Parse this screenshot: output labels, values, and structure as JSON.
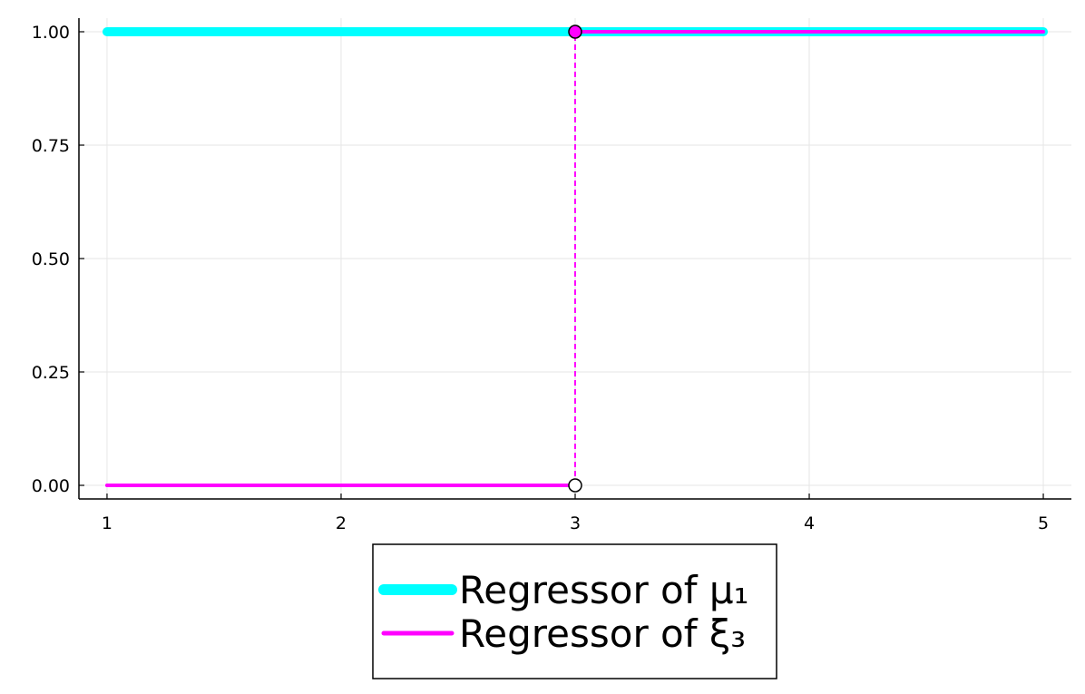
{
  "chart_data": {
    "type": "line",
    "title": "",
    "xlabel": "",
    "ylabel": "",
    "xlim": [
      0.88,
      5.12
    ],
    "ylim": [
      -0.03,
      1.03
    ],
    "x_ticks": [
      1,
      2,
      3,
      4,
      5
    ],
    "x_tick_labels": [
      "1",
      "2",
      "3",
      "4",
      "5"
    ],
    "y_ticks": [
      0.0,
      0.25,
      0.5,
      0.75,
      1.0
    ],
    "y_tick_labels": [
      "0.00",
      "0.25",
      "0.50",
      "0.75",
      "1.00"
    ],
    "grid": true,
    "legend_position": "bottom-outside",
    "series": [
      {
        "name": "Regressor of μ₁",
        "color": "#00FFFF",
        "style": "thick-solid",
        "segments": [
          {
            "x": [
              1,
              3
            ],
            "y": [
              1,
              1
            ]
          },
          {
            "x": [
              3,
              5
            ],
            "y": [
              1,
              1
            ]
          }
        ]
      },
      {
        "name": "Regressor of ξ₃",
        "color": "#FF00FF",
        "style": "solid",
        "segments": [
          {
            "x": [
              1,
              3
            ],
            "y": [
              0,
              0
            ]
          },
          {
            "x": [
              3,
              5
            ],
            "y": [
              1,
              1
            ]
          }
        ],
        "jump": {
          "x": 3,
          "from": 0,
          "to": 1,
          "style": "dashed"
        },
        "open_marker": {
          "x": 3,
          "y": 0
        },
        "closed_marker": {
          "x": 3,
          "y": 1
        }
      }
    ]
  },
  "colors": {
    "axis": "#000000",
    "grid": "#e6e6e6",
    "open_marker_fill": "#ffffff",
    "background": "#ffffff"
  }
}
